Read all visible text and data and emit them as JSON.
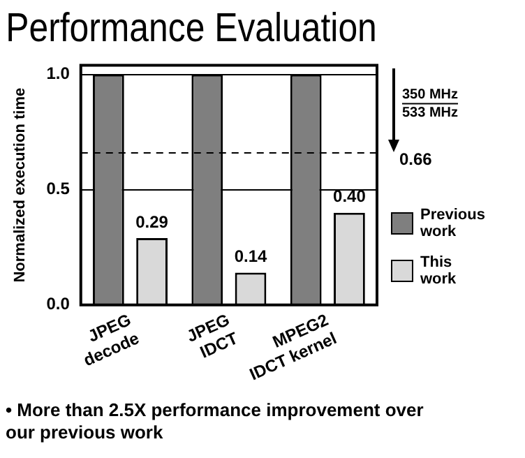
{
  "chart_data": {
    "type": "bar",
    "title": "Performance Evaluation",
    "ylabel": "Normalized execution time",
    "categories": [
      "JPEG decode",
      "JPEG IDCT",
      "MPEG2 IDCT kernel"
    ],
    "series": [
      {
        "name": "Previous work",
        "color": "#7f7f7f",
        "values": [
          1.0,
          1.0,
          1.0
        ]
      },
      {
        "name": "This work",
        "color": "#d9d9d9",
        "values": [
          0.29,
          0.14,
          0.4
        ],
        "value_labels": [
          "0.29",
          "0.14",
          "0.40"
        ]
      }
    ],
    "ylim": [
      0,
      1.04
    ],
    "yticks": [
      {
        "value": 0,
        "label": "0.0"
      },
      {
        "value": 0.5,
        "label": "0.5"
      },
      {
        "value": 1,
        "label": "1.0"
      }
    ],
    "grid": "y",
    "legend": "right",
    "ref_lines": [
      {
        "axis": "y",
        "value": 0.66,
        "label": "0.66",
        "line_style": "dashed"
      }
    ],
    "annotations": [
      "350 MHz",
      "533 MHz",
      "• More than 2.5X performance improvement over our previous work"
    ]
  }
}
